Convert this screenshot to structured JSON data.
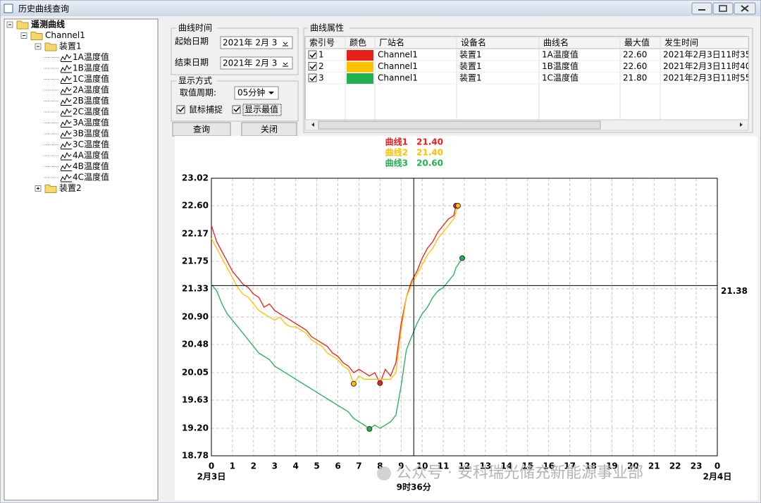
{
  "window": {
    "title": "历史曲线查询"
  },
  "tree": {
    "label": "遥测曲线",
    "children": [
      {
        "label": "Channel1",
        "children": [
          {
            "label": "装置1",
            "children": [
              {
                "label": "1A温度值"
              },
              {
                "label": "1B温度值"
              },
              {
                "label": "1C温度值"
              },
              {
                "label": "2A温度值"
              },
              {
                "label": "2B温度值"
              },
              {
                "label": "2C温度值"
              },
              {
                "label": "3A温度值"
              },
              {
                "label": "3B温度值"
              },
              {
                "label": "3C温度值"
              },
              {
                "label": "4A温度值"
              },
              {
                "label": "4B温度值"
              },
              {
                "label": "4C温度值"
              }
            ]
          },
          {
            "label": "装置2",
            "expanded": false
          }
        ]
      }
    ]
  },
  "controls": {
    "time_group": "曲线时间",
    "start_label": "起始日期",
    "start_value": "2021年 2月 3",
    "end_label": "结束日期",
    "end_value": "2021年 2月 3",
    "display_group": "显示方式",
    "period_label": "取值周期:",
    "period_value": "05分钟",
    "mouse_capture": "鼠标捕捉",
    "show_extremes": "显示最值",
    "query_button": "查询",
    "close_button": "关闭"
  },
  "table": {
    "group": "曲线属性",
    "headers": [
      "索引号",
      "颜色",
      "厂站名",
      "设备名",
      "曲线名",
      "最大值",
      "发生时间"
    ],
    "rows": [
      {
        "index": "1",
        "station": "Channel1",
        "device": "装置1",
        "curve": "1A温度值",
        "max": "22.60",
        "time": "2021年2月3日11时35"
      },
      {
        "index": "2",
        "station": "Channel1",
        "device": "装置1",
        "curve": "1B温度值",
        "max": "22.60",
        "time": "2021年2月3日11时40"
      },
      {
        "index": "3",
        "station": "Channel1",
        "device": "装置1",
        "curve": "1C温度值",
        "max": "21.80",
        "time": "2021年2月3日11时55"
      }
    ]
  },
  "chart_data": {
    "type": "line",
    "show_extremes": true,
    "grid": true,
    "xlim": [
      0,
      24
    ],
    "ylim": [
      18.78,
      23.02
    ],
    "xticks": [
      0,
      1,
      2,
      3,
      4,
      5,
      6,
      7,
      8,
      9,
      10,
      11,
      12,
      13,
      14,
      15,
      16,
      17,
      18,
      19,
      20,
      21,
      22,
      23,
      {
        "value": 24,
        "label": "0"
      }
    ],
    "yticks": [
      23.02,
      {
        "value": 22.6,
        "label": "22.60"
      },
      22.17,
      21.75,
      21.33,
      {
        "value": 20.9,
        "label": "20.90"
      },
      20.48,
      20.05,
      19.63,
      {
        "value": 19.2,
        "label": "19.20"
      },
      18.78
    ],
    "x_date_labels": [
      {
        "value": 0,
        "label": "2月3日"
      },
      {
        "value": 24,
        "label": "2月4日"
      }
    ],
    "cursor": {
      "x": 9.6,
      "x_label": "9时36分",
      "y": 21.38
    },
    "x": [
      0,
      0.25,
      0.5,
      0.75,
      1,
      1.25,
      1.5,
      1.75,
      2,
      2.25,
      2.5,
      2.75,
      3,
      3.25,
      3.5,
      3.75,
      4,
      4.25,
      4.5,
      4.75,
      5,
      5.25,
      5.5,
      5.75,
      6,
      6.25,
      6.5,
      6.75,
      7,
      7.25,
      7.5,
      7.75,
      8,
      8.25,
      8.5,
      8.75,
      9,
      9.25,
      9.5,
      9.75,
      10,
      10.25,
      10.5,
      10.75,
      11,
      11.25,
      11.5,
      11.6,
      11.7,
      11.9
    ],
    "series": [
      {
        "name": "曲线1",
        "color": "#e8201c",
        "cursor_value": 21.4,
        "cursor_label": "21.40",
        "values": [
          22.3,
          22.05,
          21.9,
          21.75,
          21.6,
          21.5,
          21.4,
          21.35,
          21.25,
          21.2,
          21.05,
          21.1,
          21.0,
          20.95,
          20.9,
          20.85,
          20.8,
          20.75,
          20.7,
          20.6,
          20.55,
          20.5,
          20.45,
          20.35,
          20.3,
          20.2,
          20.15,
          20.05,
          20.1,
          20.05,
          20.0,
          20.05,
          19.89,
          20.1,
          20.0,
          20.2,
          20.8,
          21.2,
          21.45,
          21.6,
          21.8,
          21.95,
          22.05,
          22.2,
          22.3,
          22.4,
          22.45,
          22.6,
          22.55,
          null
        ]
      },
      {
        "name": "曲线2",
        "color": "#ffc000",
        "cursor_value": 21.4,
        "cursor_label": "21.40",
        "values": [
          22.1,
          21.95,
          21.8,
          21.65,
          21.5,
          21.35,
          21.25,
          21.2,
          21.1,
          21.0,
          20.95,
          20.9,
          20.85,
          20.9,
          20.8,
          20.75,
          20.75,
          20.7,
          20.65,
          20.55,
          20.5,
          20.45,
          20.35,
          20.3,
          20.25,
          20.15,
          20.1,
          19.88,
          20.0,
          19.95,
          19.95,
          19.95,
          19.95,
          19.95,
          19.95,
          20.05,
          20.7,
          21.2,
          21.4,
          21.55,
          21.7,
          21.85,
          21.95,
          22.1,
          22.2,
          22.3,
          22.4,
          22.5,
          22.6,
          null
        ]
      },
      {
        "name": "曲线3",
        "color": "#22b050",
        "cursor_value": 20.6,
        "cursor_label": "20.60",
        "values": [
          21.4,
          21.3,
          21.1,
          20.95,
          20.85,
          20.75,
          20.65,
          20.55,
          20.45,
          20.35,
          20.3,
          20.25,
          20.15,
          20.1,
          20.05,
          20.0,
          19.95,
          19.9,
          19.85,
          19.8,
          19.75,
          19.7,
          19.65,
          19.6,
          19.55,
          19.5,
          19.45,
          19.35,
          19.3,
          19.25,
          19.19,
          19.25,
          19.2,
          19.25,
          19.3,
          19.4,
          19.85,
          20.4,
          20.6,
          20.8,
          20.95,
          21.05,
          21.2,
          21.3,
          21.35,
          21.45,
          21.55,
          21.65,
          21.7,
          21.8
        ]
      }
    ]
  },
  "watermark": "公众号 · 安科瑞光储充新能源事业部"
}
